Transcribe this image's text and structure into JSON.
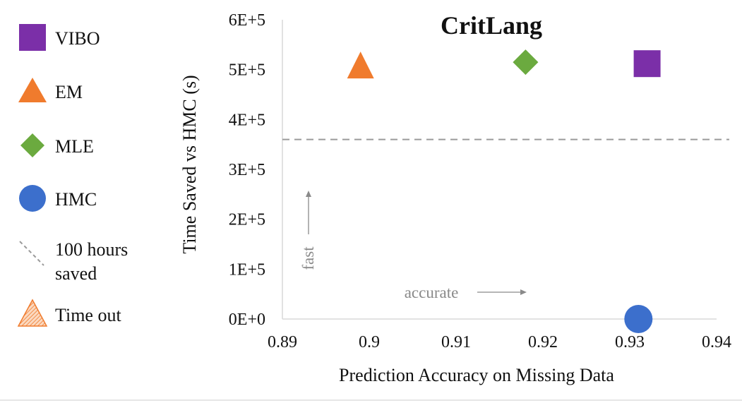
{
  "chart_data": {
    "type": "scatter",
    "title": "CritLang",
    "xlabel": "Prediction Accuracy on Missing Data",
    "ylabel": "Time Saved vs HMC (s)",
    "xlim": [
      0.89,
      0.94
    ],
    "ylim": [
      0,
      600000
    ],
    "x_ticks": [
      0.89,
      0.9,
      0.91,
      0.92,
      0.93,
      0.94
    ],
    "x_tick_labels": [
      "0.89",
      "0.9",
      "0.91",
      "0.92",
      "0.93",
      "0.94"
    ],
    "y_ticks": [
      0,
      100000,
      200000,
      300000,
      400000,
      500000,
      600000
    ],
    "y_tick_labels": [
      "0E+0",
      "1E+5",
      "2E+5",
      "3E+5",
      "4E+5",
      "5E+5",
      "6E+5"
    ],
    "grid": false,
    "legend_position": "left",
    "series": [
      {
        "name": "VIBO",
        "marker": "square",
        "color": "#7B2FA8",
        "points": [
          {
            "x": 0.932,
            "y": 512000
          }
        ]
      },
      {
        "name": "EM",
        "marker": "triangle",
        "color": "#F07B2D",
        "points": [
          {
            "x": 0.899,
            "y": 505000
          }
        ]
      },
      {
        "name": "MLE",
        "marker": "diamond",
        "color": "#6BAA3F",
        "points": [
          {
            "x": 0.918,
            "y": 515000
          }
        ]
      },
      {
        "name": "HMC",
        "marker": "circle",
        "color": "#3C6FCC",
        "points": [
          {
            "x": 0.931,
            "y": 0
          }
        ]
      }
    ],
    "reference_lines": [
      {
        "name_lines": [
          "100 hours",
          "saved"
        ],
        "orientation": "horizontal",
        "y": 360000,
        "style": "dashed",
        "color": "#9a9a9a"
      }
    ],
    "extra_legend": [
      {
        "name": "Time out",
        "marker": "hatched-triangle",
        "color": "#F07B2D"
      }
    ],
    "annotations": [
      {
        "text": "fast",
        "direction": "up"
      },
      {
        "text": "accurate",
        "direction": "right"
      }
    ]
  }
}
